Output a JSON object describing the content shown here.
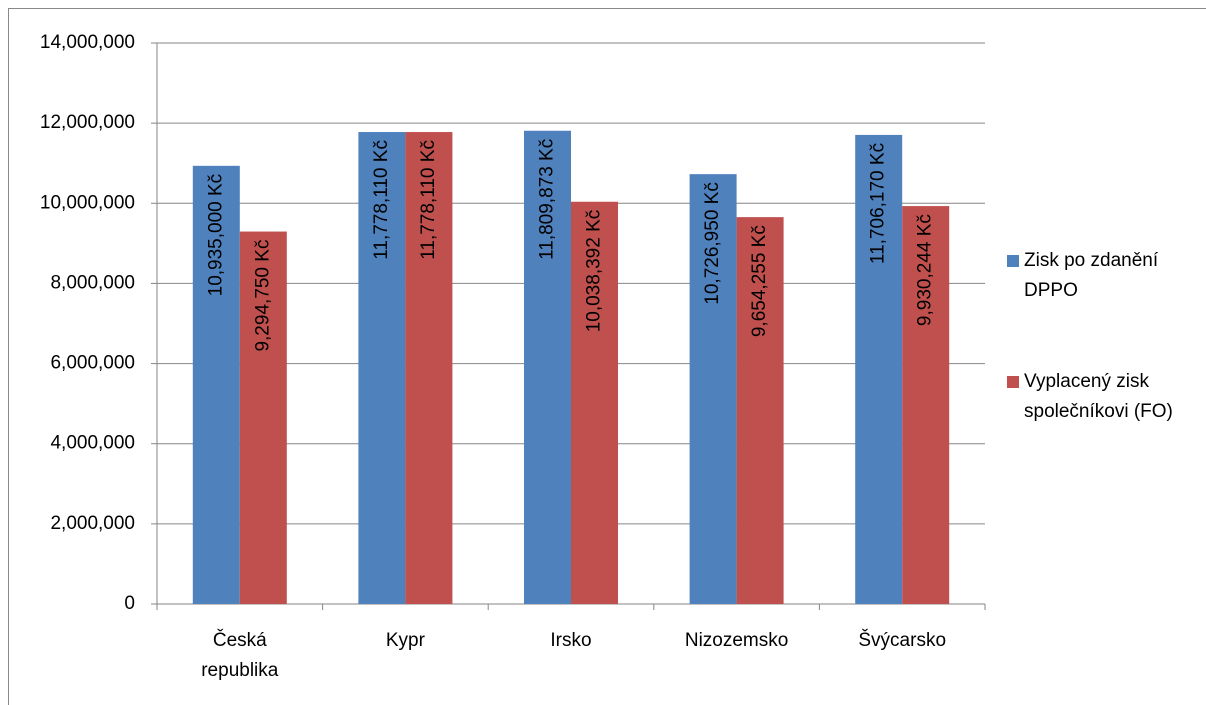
{
  "chart_data": {
    "type": "bar",
    "categories": [
      "Česká republika",
      "Kypr",
      "Irsko",
      "Nizozemsko",
      "Švýcarsko"
    ],
    "series": [
      {
        "name": "Zisk po zdanění DPPO",
        "color": "#4f81bd",
        "values": [
          10935000,
          11778110,
          11809873,
          10726950,
          11706170
        ],
        "value_labels": [
          "10,935,000 Kč",
          "11,778,110 Kč",
          "11,809,873 Kč",
          "10,726,950 Kč",
          "11,706,170 Kč"
        ]
      },
      {
        "name": "Vyplacený zisk společníkovi (FO)",
        "color": "#c0504d",
        "values": [
          9294750,
          11778110,
          10038392,
          9654255,
          9930244
        ],
        "value_labels": [
          "9,294,750 Kč",
          "11,778,110 Kč",
          "10,038,392 Kč",
          "9,654,255 Kč",
          "9,930,244 Kč"
        ]
      }
    ],
    "ylim": [
      0,
      14000000
    ],
    "yticks": [
      0,
      {
        "value": 2000000,
        "label": "2,000,000"
      },
      {
        "value": 4000000,
        "label": "4,000,000"
      },
      {
        "value": 6000000,
        "label": "6,000,000"
      },
      {
        "value": 8000000,
        "label": "8,000,000"
      },
      {
        "value": 10000000,
        "label": "10,000,000"
      },
      {
        "value": 12000000,
        "label": "12,000,000"
      },
      {
        "value": 14000000,
        "label": "14,000,000"
      }
    ],
    "grid": true,
    "legend": "right"
  }
}
